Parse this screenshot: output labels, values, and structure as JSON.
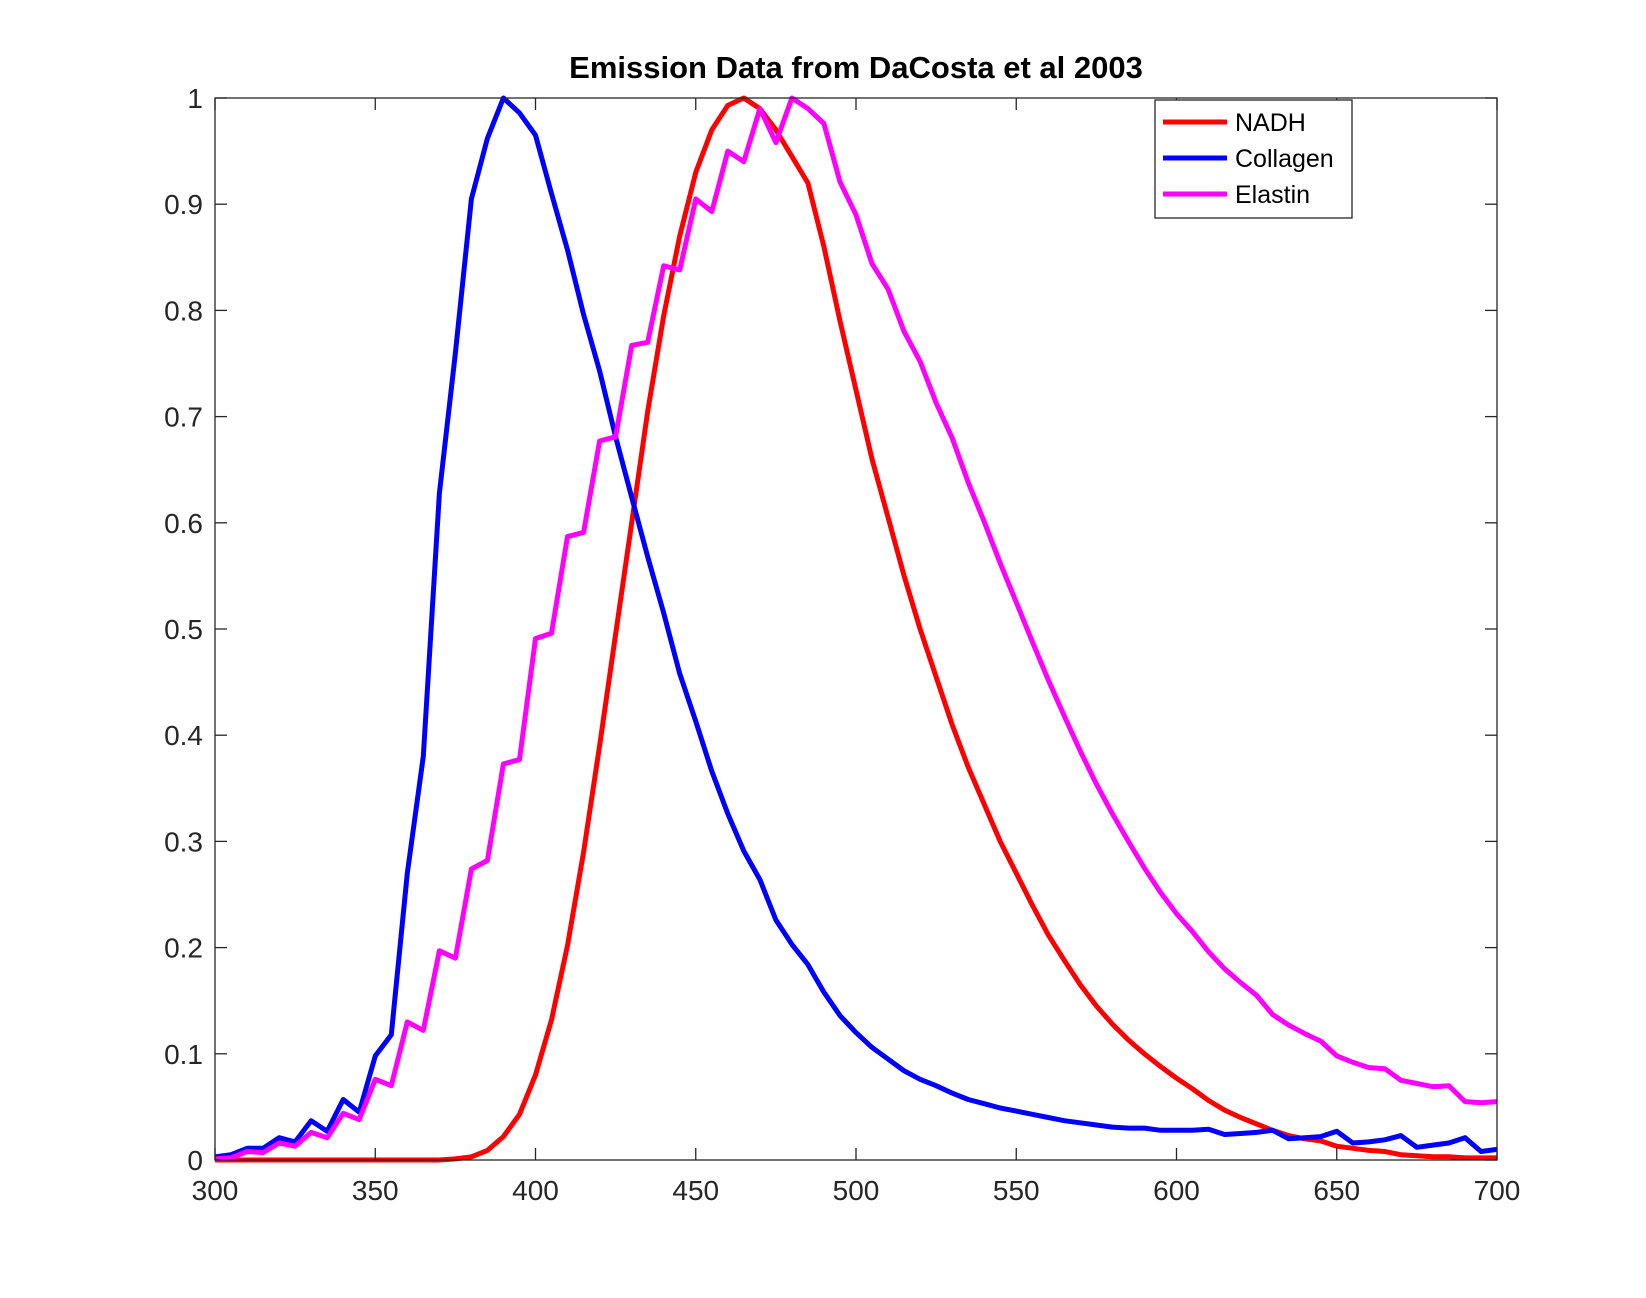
{
  "chart_data": {
    "type": "line",
    "title": "Emission Data from DaCosta et al 2003",
    "xlabel": "",
    "ylabel": "",
    "xlim": [
      300,
      700
    ],
    "ylim": [
      0,
      1
    ],
    "x_ticks": [
      300,
      350,
      400,
      450,
      500,
      550,
      600,
      650,
      700
    ],
    "y_ticks": [
      0,
      0.1,
      0.2,
      0.3,
      0.4,
      0.5,
      0.6,
      0.7,
      0.8,
      0.9,
      1
    ],
    "x_tick_labels": [
      "300",
      "350",
      "400",
      "450",
      "500",
      "550",
      "600",
      "650",
      "700"
    ],
    "y_tick_labels": [
      "0",
      "0.1",
      "0.2",
      "0.3",
      "0.4",
      "0.5",
      "0.6",
      "0.7",
      "0.8",
      "0.9",
      "1"
    ],
    "grid": false,
    "legend_position": "top-right",
    "series": [
      {
        "name": "NADH",
        "color": "#ff0000",
        "points": [
          [
            300,
            0
          ],
          [
            370,
            0
          ],
          [
            375,
            0.001
          ],
          [
            380,
            0.003
          ],
          [
            385,
            0.009
          ],
          [
            390,
            0.022
          ],
          [
            395,
            0.043
          ],
          [
            400,
            0.08
          ],
          [
            405,
            0.132
          ],
          [
            410,
            0.202
          ],
          [
            415,
            0.29
          ],
          [
            420,
            0.39
          ],
          [
            425,
            0.495
          ],
          [
            430,
            0.6
          ],
          [
            435,
            0.705
          ],
          [
            440,
            0.795
          ],
          [
            445,
            0.87
          ],
          [
            450,
            0.93
          ],
          [
            455,
            0.97
          ],
          [
            460,
            0.993
          ],
          [
            465,
            1.0
          ],
          [
            470,
            0.99
          ],
          [
            475,
            0.97
          ],
          [
            480,
            0.945
          ],
          [
            485,
            0.92
          ],
          [
            490,
            0.86
          ],
          [
            495,
            0.79
          ],
          [
            500,
            0.725
          ],
          [
            505,
            0.66
          ],
          [
            510,
            0.605
          ],
          [
            515,
            0.55
          ],
          [
            520,
            0.5
          ],
          [
            525,
            0.455
          ],
          [
            530,
            0.41
          ],
          [
            535,
            0.37
          ],
          [
            540,
            0.335
          ],
          [
            545,
            0.3
          ],
          [
            550,
            0.27
          ],
          [
            555,
            0.24
          ],
          [
            560,
            0.212
          ],
          [
            565,
            0.188
          ],
          [
            570,
            0.165
          ],
          [
            575,
            0.145
          ],
          [
            580,
            0.128
          ],
          [
            585,
            0.113
          ],
          [
            590,
            0.1
          ],
          [
            595,
            0.088
          ],
          [
            600,
            0.077
          ],
          [
            605,
            0.067
          ],
          [
            610,
            0.056
          ],
          [
            615,
            0.047
          ],
          [
            620,
            0.04
          ],
          [
            625,
            0.034
          ],
          [
            630,
            0.028
          ],
          [
            635,
            0.023
          ],
          [
            640,
            0.02
          ],
          [
            645,
            0.018
          ],
          [
            650,
            0.013
          ],
          [
            655,
            0.011
          ],
          [
            660,
            0.009
          ],
          [
            665,
            0.008
          ],
          [
            670,
            0.005
          ],
          [
            675,
            0.004
          ],
          [
            680,
            0.003
          ],
          [
            685,
            0.003
          ],
          [
            690,
            0.002
          ],
          [
            695,
            0.002
          ],
          [
            700,
            0.002
          ]
        ]
      },
      {
        "name": "Collagen",
        "color": "#0000ff",
        "points": [
          [
            300,
            0.003
          ],
          [
            305,
            0.005
          ],
          [
            310,
            0.011
          ],
          [
            315,
            0.011
          ],
          [
            320,
            0.021
          ],
          [
            325,
            0.017
          ],
          [
            330,
            0.037
          ],
          [
            335,
            0.027
          ],
          [
            340,
            0.057
          ],
          [
            345,
            0.045
          ],
          [
            350,
            0.098
          ],
          [
            355,
            0.118
          ],
          [
            360,
            0.27
          ],
          [
            365,
            0.38
          ],
          [
            370,
            0.628
          ],
          [
            375,
            0.76
          ],
          [
            380,
            0.905
          ],
          [
            385,
            0.962
          ],
          [
            390,
            1.0
          ],
          [
            395,
            0.986
          ],
          [
            400,
            0.965
          ],
          [
            405,
            0.91
          ],
          [
            410,
            0.857
          ],
          [
            415,
            0.796
          ],
          [
            420,
            0.743
          ],
          [
            425,
            0.681
          ],
          [
            430,
            0.624
          ],
          [
            435,
            0.568
          ],
          [
            440,
            0.515
          ],
          [
            445,
            0.458
          ],
          [
            450,
            0.413
          ],
          [
            455,
            0.366
          ],
          [
            460,
            0.326
          ],
          [
            465,
            0.291
          ],
          [
            470,
            0.264
          ],
          [
            475,
            0.226
          ],
          [
            480,
            0.203
          ],
          [
            485,
            0.184
          ],
          [
            490,
            0.158
          ],
          [
            495,
            0.136
          ],
          [
            500,
            0.12
          ],
          [
            505,
            0.106
          ],
          [
            510,
            0.095
          ],
          [
            515,
            0.084
          ],
          [
            520,
            0.076
          ],
          [
            525,
            0.07
          ],
          [
            530,
            0.063
          ],
          [
            535,
            0.057
          ],
          [
            540,
            0.053
          ],
          [
            545,
            0.049
          ],
          [
            550,
            0.046
          ],
          [
            555,
            0.043
          ],
          [
            560,
            0.04
          ],
          [
            565,
            0.037
          ],
          [
            570,
            0.035
          ],
          [
            575,
            0.033
          ],
          [
            580,
            0.031
          ],
          [
            585,
            0.03
          ],
          [
            590,
            0.03
          ],
          [
            595,
            0.028
          ],
          [
            600,
            0.028
          ],
          [
            605,
            0.028
          ],
          [
            610,
            0.029
          ],
          [
            615,
            0.024
          ],
          [
            620,
            0.025
          ],
          [
            625,
            0.026
          ],
          [
            630,
            0.028
          ],
          [
            635,
            0.02
          ],
          [
            640,
            0.021
          ],
          [
            645,
            0.022
          ],
          [
            650,
            0.027
          ],
          [
            655,
            0.016
          ],
          [
            660,
            0.017
          ],
          [
            665,
            0.019
          ],
          [
            670,
            0.023
          ],
          [
            675,
            0.012
          ],
          [
            680,
            0.014
          ],
          [
            685,
            0.016
          ],
          [
            690,
            0.021
          ],
          [
            695,
            0.008
          ],
          [
            700,
            0.01
          ]
        ]
      },
      {
        "name": "Elastin",
        "color": "#ff00ff",
        "points": [
          [
            300,
            0.001
          ],
          [
            305,
            0.002
          ],
          [
            310,
            0.008
          ],
          [
            315,
            0.007
          ],
          [
            320,
            0.016
          ],
          [
            325,
            0.013
          ],
          [
            330,
            0.026
          ],
          [
            335,
            0.021
          ],
          [
            340,
            0.044
          ],
          [
            345,
            0.038
          ],
          [
            350,
            0.076
          ],
          [
            355,
            0.07
          ],
          [
            360,
            0.13
          ],
          [
            365,
            0.122
          ],
          [
            370,
            0.197
          ],
          [
            375,
            0.19
          ],
          [
            380,
            0.274
          ],
          [
            385,
            0.282
          ],
          [
            390,
            0.373
          ],
          [
            395,
            0.377
          ],
          [
            400,
            0.491
          ],
          [
            405,
            0.496
          ],
          [
            410,
            0.587
          ],
          [
            415,
            0.591
          ],
          [
            420,
            0.677
          ],
          [
            425,
            0.681
          ],
          [
            430,
            0.767
          ],
          [
            435,
            0.77
          ],
          [
            440,
            0.842
          ],
          [
            445,
            0.838
          ],
          [
            450,
            0.905
          ],
          [
            455,
            0.893
          ],
          [
            460,
            0.95
          ],
          [
            465,
            0.94
          ],
          [
            470,
            0.99
          ],
          [
            475,
            0.958
          ],
          [
            480,
            1.0
          ],
          [
            485,
            0.99
          ],
          [
            490,
            0.976
          ],
          [
            495,
            0.921
          ],
          [
            500,
            0.89
          ],
          [
            505,
            0.844
          ],
          [
            510,
            0.82
          ],
          [
            515,
            0.78
          ],
          [
            520,
            0.752
          ],
          [
            525,
            0.713
          ],
          [
            530,
            0.68
          ],
          [
            535,
            0.638
          ],
          [
            540,
            0.601
          ],
          [
            545,
            0.562
          ],
          [
            550,
            0.525
          ],
          [
            555,
            0.488
          ],
          [
            560,
            0.452
          ],
          [
            565,
            0.418
          ],
          [
            570,
            0.385
          ],
          [
            575,
            0.354
          ],
          [
            580,
            0.326
          ],
          [
            585,
            0.3
          ],
          [
            590,
            0.275
          ],
          [
            595,
            0.252
          ],
          [
            600,
            0.232
          ],
          [
            605,
            0.215
          ],
          [
            610,
            0.196
          ],
          [
            615,
            0.18
          ],
          [
            620,
            0.167
          ],
          [
            625,
            0.155
          ],
          [
            630,
            0.137
          ],
          [
            635,
            0.127
          ],
          [
            640,
            0.119
          ],
          [
            645,
            0.112
          ],
          [
            650,
            0.098
          ],
          [
            655,
            0.092
          ],
          [
            660,
            0.087
          ],
          [
            665,
            0.086
          ],
          [
            670,
            0.075
          ],
          [
            675,
            0.072
          ],
          [
            680,
            0.069
          ],
          [
            685,
            0.07
          ],
          [
            690,
            0.055
          ],
          [
            695,
            0.054
          ],
          [
            700,
            0.055
          ]
        ]
      }
    ]
  }
}
